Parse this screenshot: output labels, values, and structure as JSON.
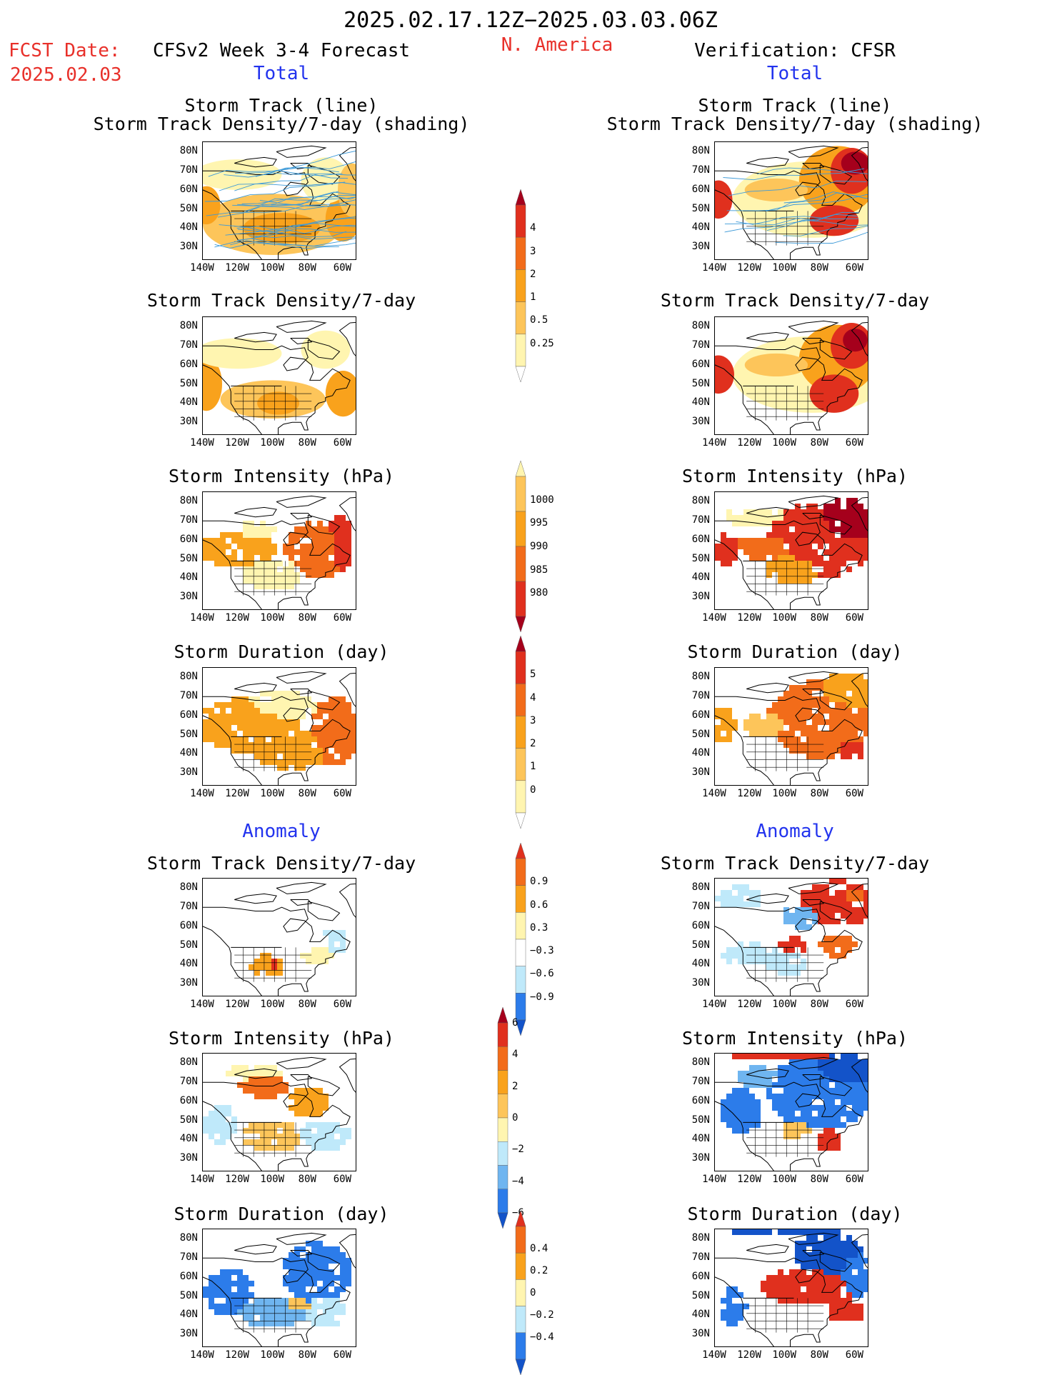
{
  "header": {
    "period": "2025.02.17.12Z−2025.03.03.06Z",
    "region": "N. America",
    "fcst_label": "FCST Date:",
    "fcst_date": "2025.02.03",
    "forecast_title": "CFSv2 Week 3-4 Forecast",
    "verification_title": "Verification: CFSR",
    "total_label": "Total",
    "anomaly_label": "Anomaly"
  },
  "panel_titles": {
    "track_line": "Storm Track (line)",
    "track_shading": "Storm Track Density/7-day (shading)",
    "density": "Storm Track Density/7-day",
    "intensity": "Storm Intensity (hPa)",
    "duration": "Storm Duration (day)"
  },
  "axes": {
    "lat_labels": [
      "80N",
      "70N",
      "60N",
      "50N",
      "40N",
      "30N"
    ],
    "lon_labels": [
      "140W",
      "120W",
      "100W",
      "80W",
      "60W"
    ]
  },
  "colorbars": {
    "density_total": [
      "4",
      "3",
      "2",
      "1",
      "0.5",
      "0.25"
    ],
    "intensity_total": [
      "1000",
      "995",
      "990",
      "985",
      "980"
    ],
    "duration_total": [
      "5",
      "4",
      "3",
      "2",
      "1",
      "0"
    ],
    "density_anom": [
      "0.9",
      "0.6",
      "0.3",
      "−0.3",
      "−0.6",
      "−0.9"
    ],
    "intensity_anom": [
      "6",
      "4",
      "2",
      "0",
      "−2",
      "−4",
      "−6"
    ],
    "duration_anom": [
      "0.4",
      "0.2",
      "0",
      "−0.2",
      "−0.4"
    ]
  },
  "colors": {
    "pale_yellow": "#fff5b0",
    "light_orange": "#fdc55a",
    "orange": "#f9a21c",
    "dark_orange": "#f26c1a",
    "red": "#e0301e",
    "dark_red": "#a5001c",
    "light_blue": "#bfe9fa",
    "mid_blue": "#6fb5f0",
    "blue": "#2c7cea",
    "dark_blue": "#1353c9",
    "track_line": "#3d9ad8",
    "header_red": "#e8302a",
    "header_blue": "#2233ee"
  }
}
